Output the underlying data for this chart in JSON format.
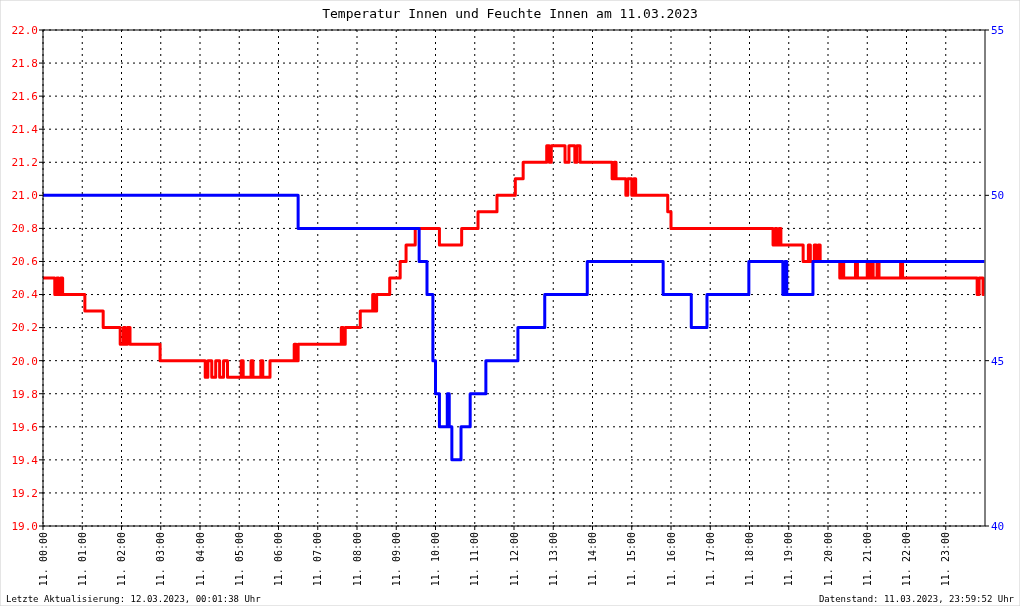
{
  "chart_data": {
    "type": "step",
    "title": "Temperatur Innen und Feuchte Innen am 11.03.2023",
    "xlim": [
      "2023-03-11T00:00",
      "2023-03-12T00:00"
    ],
    "xticks": [
      {
        "value": "2023-03-11T00:00",
        "label": "11. 00:00"
      },
      {
        "value": "2023-03-11T01:00",
        "label": "11. 01:00"
      },
      {
        "value": "2023-03-11T02:00",
        "label": "11. 02:00"
      },
      {
        "value": "2023-03-11T03:00",
        "label": "11. 03:00"
      },
      {
        "value": "2023-03-11T04:00",
        "label": "11. 04:00"
      },
      {
        "value": "2023-03-11T05:00",
        "label": "11. 05:00"
      },
      {
        "value": "2023-03-11T06:00",
        "label": "11. 06:00"
      },
      {
        "value": "2023-03-11T07:00",
        "label": "11. 07:00"
      },
      {
        "value": "2023-03-11T08:00",
        "label": "11. 08:00"
      },
      {
        "value": "2023-03-11T09:00",
        "label": "11. 09:00"
      },
      {
        "value": "2023-03-11T10:00",
        "label": "11. 10:00"
      },
      {
        "value": "2023-03-11T11:00",
        "label": "11. 11:00"
      },
      {
        "value": "2023-03-11T12:00",
        "label": "11. 12:00"
      },
      {
        "value": "2023-03-11T13:00",
        "label": "11. 13:00"
      },
      {
        "value": "2023-03-11T14:00",
        "label": "11. 14:00"
      },
      {
        "value": "2023-03-11T15:00",
        "label": "11. 15:00"
      },
      {
        "value": "2023-03-11T16:00",
        "label": "11. 16:00"
      },
      {
        "value": "2023-03-11T17:00",
        "label": "11. 17:00"
      },
      {
        "value": "2023-03-11T18:00",
        "label": "11. 18:00"
      },
      {
        "value": "2023-03-11T19:00",
        "label": "11. 19:00"
      },
      {
        "value": "2023-03-11T20:00",
        "label": "11. 20:00"
      },
      {
        "value": "2023-03-11T21:00",
        "label": "11. 21:00"
      },
      {
        "value": "2023-03-11T22:00",
        "label": "11. 22:00"
      },
      {
        "value": "2023-03-11T23:00",
        "label": "11. 23:00"
      }
    ],
    "ylim": [
      19,
      22
    ],
    "yticks": [
      {
        "value": 19,
        "label": "19.0"
      },
      {
        "value": 19.2,
        "label": "19.2"
      },
      {
        "value": 19.4,
        "label": "19.4"
      },
      {
        "value": 19.6,
        "label": "19.6"
      },
      {
        "value": 19.8,
        "label": "19.8"
      },
      {
        "value": 20,
        "label": "20.0"
      },
      {
        "value": 20.2,
        "label": "20.2"
      },
      {
        "value": 20.4,
        "label": "20.4"
      },
      {
        "value": 20.6,
        "label": "20.6"
      },
      {
        "value": 20.8,
        "label": "20.8"
      },
      {
        "value": 21,
        "label": "21.0"
      },
      {
        "value": 21.2,
        "label": "21.2"
      },
      {
        "value": 21.4,
        "label": "21.4"
      },
      {
        "value": 21.6,
        "label": "21.6"
      },
      {
        "value": 21.8,
        "label": "21.8"
      },
      {
        "value": 22,
        "label": "22.0"
      }
    ],
    "y2lim": [
      40,
      55
    ],
    "y2ticks": [
      40,
      45,
      50,
      55
    ],
    "grid": true,
    "line_style": "dotted",
    "annotations": [
      "Letzte Aktualisierung: 12.03.2023, 00:01:38 Uhr",
      "Datenstand: 11.03.2023, 23:59:52 Uhr"
    ],
    "series": [
      {
        "color": "#ff0000",
        "line_style": "solid",
        "x": [
          "2023-03-11T00:00",
          "2023-03-11T00:18",
          "2023-03-11T00:21",
          "2023-03-11T00:24",
          "2023-03-11T00:27",
          "2023-03-11T00:30",
          "2023-03-11T01:04",
          "2023-03-11T01:32",
          "2023-03-11T01:58",
          "2023-03-11T02:03",
          "2023-03-11T02:06",
          "2023-03-11T02:09",
          "2023-03-11T02:13",
          "2023-03-11T02:59",
          "2023-03-11T04:08",
          "2023-03-11T04:12",
          "2023-03-11T04:18",
          "2023-03-11T04:24",
          "2023-03-11T04:30",
          "2023-03-11T04:36",
          "2023-03-11T04:42",
          "2023-03-11T05:03",
          "2023-03-11T05:06",
          "2023-03-11T05:18",
          "2023-03-11T05:21",
          "2023-03-11T05:33",
          "2023-03-11T05:36",
          "2023-03-11T05:47",
          "2023-03-11T06:24",
          "2023-03-11T06:27",
          "2023-03-11T06:30",
          "2023-03-11T07:36",
          "2023-03-11T07:39",
          "2023-03-11T07:42",
          "2023-03-11T08:05",
          "2023-03-11T08:24",
          "2023-03-11T08:27",
          "2023-03-11T08:30",
          "2023-03-11T08:50",
          "2023-03-11T09:06",
          "2023-03-11T09:15",
          "2023-03-11T09:29",
          "2023-03-11T10:06",
          "2023-03-11T10:40",
          "2023-03-11T11:05",
          "2023-03-11T11:34",
          "2023-03-11T12:02",
          "2023-03-11T12:14",
          "2023-03-11T12:50",
          "2023-03-11T12:54",
          "2023-03-11T12:57",
          "2023-03-11T13:18",
          "2023-03-11T13:24",
          "2023-03-11T13:33",
          "2023-03-11T13:36",
          "2023-03-11T13:41",
          "2023-03-11T14:30",
          "2023-03-11T14:33",
          "2023-03-11T14:36",
          "2023-03-11T14:51",
          "2023-03-11T14:54",
          "2023-03-11T15:00",
          "2023-03-11T15:03",
          "2023-03-11T15:06",
          "2023-03-11T15:55",
          "2023-03-11T16:00",
          "2023-03-11T18:36",
          "2023-03-11T18:39",
          "2023-03-11T18:42",
          "2023-03-11T18:45",
          "2023-03-11T18:48",
          "2023-03-11T19:22",
          "2023-03-11T19:30",
          "2023-03-11T19:33",
          "2023-03-11T19:39",
          "2023-03-11T19:42",
          "2023-03-11T19:45",
          "2023-03-11T19:48",
          "2023-03-11T20:18",
          "2023-03-11T20:21",
          "2023-03-11T20:24",
          "2023-03-11T20:42",
          "2023-03-11T20:45",
          "2023-03-11T21:00",
          "2023-03-11T21:03",
          "2023-03-11T21:06",
          "2023-03-11T21:09",
          "2023-03-11T21:15",
          "2023-03-11T21:18",
          "2023-03-11T21:51",
          "2023-03-11T21:54",
          "2023-03-11T23:48",
          "2023-03-11T23:51",
          "2023-03-11T23:57",
          "2023-03-11T23:59"
        ],
        "values": [
          20.5,
          20.4,
          20.5,
          20.4,
          20.5,
          20.4,
          20.3,
          20.2,
          20.1,
          20.2,
          20.1,
          20.2,
          20.1,
          20,
          19.9,
          20,
          19.9,
          20,
          19.9,
          20,
          19.9,
          20,
          19.9,
          20,
          19.9,
          20,
          19.9,
          20,
          20.1,
          20,
          20.1,
          20.2,
          20.1,
          20.2,
          20.3,
          20.4,
          20.3,
          20.4,
          20.5,
          20.6,
          20.7,
          20.8,
          20.7,
          20.8,
          20.9,
          21,
          21.1,
          21.2,
          21.3,
          21.2,
          21.3,
          21.2,
          21.3,
          21.2,
          21.3,
          21.2,
          21.1,
          21.2,
          21.1,
          21,
          21.1,
          21,
          21.1,
          21,
          20.9,
          20.8,
          20.7,
          20.8,
          20.7,
          20.8,
          20.7,
          20.6,
          20.7,
          20.6,
          20.7,
          20.6,
          20.7,
          20.6,
          20.5,
          20.6,
          20.5,
          20.6,
          20.5,
          20.6,
          20.5,
          20.6,
          20.5,
          20.6,
          20.5,
          20.6,
          20.5,
          20.4,
          20.5,
          20.4,
          20.4
        ]
      },
      {
        "color": "#0000ff",
        "axis": "y2",
        "line_style": "solid",
        "x": [
          "2023-03-11T00:00",
          "2023-03-11T06:30",
          "2023-03-11T09:35",
          "2023-03-11T09:47",
          "2023-03-11T09:56",
          "2023-03-11T10:00",
          "2023-03-11T10:06",
          "2023-03-11T10:18",
          "2023-03-11T10:21",
          "2023-03-11T10:25",
          "2023-03-11T10:39",
          "2023-03-11T10:53",
          "2023-03-11T11:17",
          "2023-03-11T12:06",
          "2023-03-11T12:47",
          "2023-03-11T13:52",
          "2023-03-11T15:48",
          "2023-03-11T16:31",
          "2023-03-11T16:55",
          "2023-03-11T17:59",
          "2023-03-11T18:51",
          "2023-03-11T18:54",
          "2023-03-11T18:57",
          "2023-03-11T19:37",
          "2023-03-11T23:59"
        ],
        "values": [
          50,
          49,
          48,
          47,
          45,
          44,
          43,
          44,
          43,
          42,
          43,
          44,
          45,
          46,
          47,
          48,
          47,
          46,
          47,
          48,
          47,
          48,
          47,
          48,
          48
        ]
      }
    ]
  }
}
